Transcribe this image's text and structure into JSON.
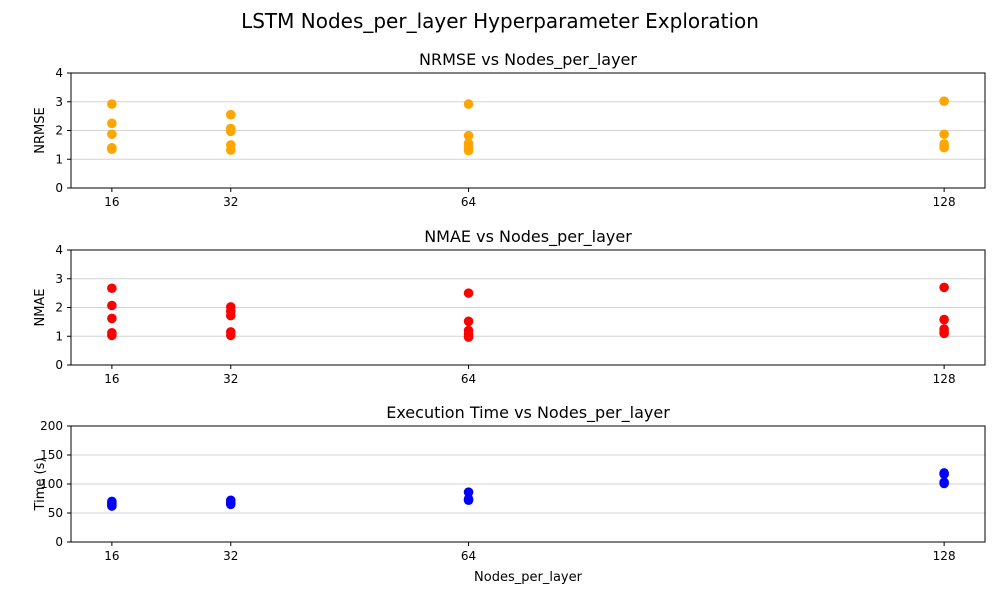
{
  "figure": {
    "title": "LSTM Nodes_per_layer Hyperparameter Exploration"
  },
  "chart_data": [
    {
      "type": "scatter",
      "title": "NRMSE vs Nodes_per_layer",
      "xlabel": "",
      "ylabel": "NRMSE",
      "x_ticks": [
        16,
        32,
        64,
        128
      ],
      "xlim": [
        10.5,
        133.5
      ],
      "ylim": [
        0,
        4
      ],
      "y_ticks": [
        0,
        1,
        2,
        3,
        4
      ],
      "grid": "y",
      "color": "#ffa500",
      "points": [
        {
          "x": 16,
          "y": 2.92
        },
        {
          "x": 16,
          "y": 2.25
        },
        {
          "x": 16,
          "y": 1.87
        },
        {
          "x": 16,
          "y": 1.4
        },
        {
          "x": 16,
          "y": 1.35
        },
        {
          "x": 32,
          "y": 2.55
        },
        {
          "x": 32,
          "y": 2.07
        },
        {
          "x": 32,
          "y": 1.97
        },
        {
          "x": 32,
          "y": 1.5
        },
        {
          "x": 32,
          "y": 1.32
        },
        {
          "x": 64,
          "y": 2.92
        },
        {
          "x": 64,
          "y": 1.82
        },
        {
          "x": 64,
          "y": 1.55
        },
        {
          "x": 64,
          "y": 1.42
        },
        {
          "x": 64,
          "y": 1.3
        },
        {
          "x": 128,
          "y": 3.02
        },
        {
          "x": 128,
          "y": 1.87
        },
        {
          "x": 128,
          "y": 1.53
        },
        {
          "x": 128,
          "y": 1.45
        },
        {
          "x": 128,
          "y": 1.4
        }
      ]
    },
    {
      "type": "scatter",
      "title": "NMAE vs Nodes_per_layer",
      "xlabel": "",
      "ylabel": "NMAE",
      "x_ticks": [
        16,
        32,
        64,
        128
      ],
      "xlim": [
        10.5,
        133.5
      ],
      "ylim": [
        0,
        4
      ],
      "y_ticks": [
        0,
        1,
        2,
        3,
        4
      ],
      "grid": "y",
      "color": "#ff0000",
      "points": [
        {
          "x": 16,
          "y": 2.67
        },
        {
          "x": 16,
          "y": 2.07
        },
        {
          "x": 16,
          "y": 1.62
        },
        {
          "x": 16,
          "y": 1.12
        },
        {
          "x": 16,
          "y": 1.03
        },
        {
          "x": 32,
          "y": 2.02
        },
        {
          "x": 32,
          "y": 1.87
        },
        {
          "x": 32,
          "y": 1.72
        },
        {
          "x": 32,
          "y": 1.15
        },
        {
          "x": 32,
          "y": 1.03
        },
        {
          "x": 64,
          "y": 2.5
        },
        {
          "x": 64,
          "y": 1.52
        },
        {
          "x": 64,
          "y": 1.2
        },
        {
          "x": 64,
          "y": 1.07
        },
        {
          "x": 64,
          "y": 0.97
        },
        {
          "x": 128,
          "y": 2.7
        },
        {
          "x": 128,
          "y": 1.58
        },
        {
          "x": 128,
          "y": 1.25
        },
        {
          "x": 128,
          "y": 1.15
        },
        {
          "x": 128,
          "y": 1.1
        }
      ]
    },
    {
      "type": "scatter",
      "title": "Execution Time vs Nodes_per_layer",
      "xlabel": "Nodes_per_layer",
      "ylabel": "Time (s)",
      "x_ticks": [
        16,
        32,
        64,
        128
      ],
      "xlim": [
        10.5,
        133.5
      ],
      "ylim": [
        0,
        200
      ],
      "y_ticks": [
        0,
        50,
        100,
        150,
        200
      ],
      "grid": "y",
      "color": "#0000ff",
      "points": [
        {
          "x": 16,
          "y": 70
        },
        {
          "x": 16,
          "y": 67
        },
        {
          "x": 16,
          "y": 64
        },
        {
          "x": 16,
          "y": 62
        },
        {
          "x": 32,
          "y": 72
        },
        {
          "x": 32,
          "y": 68
        },
        {
          "x": 32,
          "y": 65
        },
        {
          "x": 64,
          "y": 86
        },
        {
          "x": 64,
          "y": 74
        },
        {
          "x": 64,
          "y": 72
        },
        {
          "x": 128,
          "y": 119
        },
        {
          "x": 128,
          "y": 117
        },
        {
          "x": 128,
          "y": 103
        },
        {
          "x": 128,
          "y": 101
        }
      ]
    }
  ]
}
